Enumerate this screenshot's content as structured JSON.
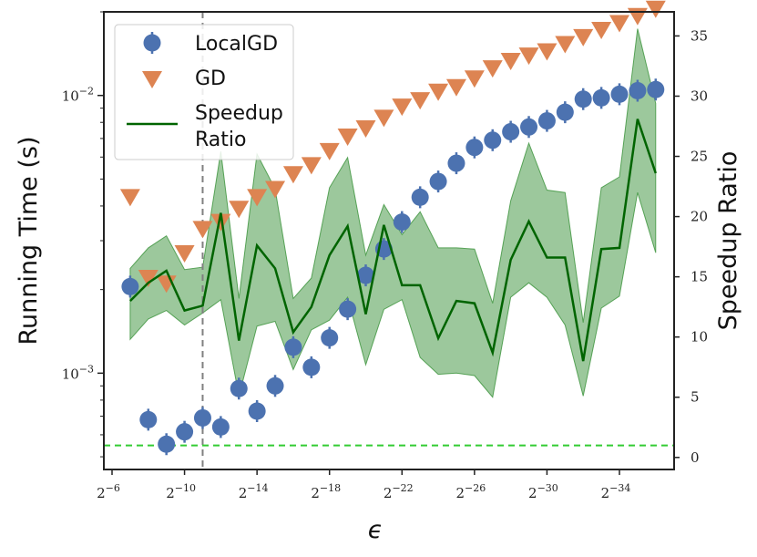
{
  "chart_data": {
    "type": "scatter",
    "title": "",
    "xlabel": "ϵ",
    "ylabel_left": "Running Time (s)",
    "ylabel_right": "Speedup Ratio",
    "x_scale": "log2",
    "y_left_scale": "log10",
    "x_exponents": [
      -7,
      -8,
      -9,
      -10,
      -11,
      -12,
      -13,
      -14,
      -15,
      -16,
      -17,
      -18,
      -19,
      -20,
      -21,
      -22,
      -23,
      -24,
      -25,
      -26,
      -27,
      -28,
      -29,
      -30,
      -31,
      -32,
      -33,
      -34,
      -35,
      -36
    ],
    "x_tick_exponents": [
      -6,
      -10,
      -14,
      -18,
      -22,
      -26,
      -30,
      -34
    ],
    "x_tick_labels": [
      "2",
      "2",
      "2",
      "2",
      "2",
      "2",
      "2",
      "2"
    ],
    "x_tick_sup": [
      "−6",
      "−10",
      "−14",
      "−18",
      "−22",
      "−26",
      "−30",
      "−34"
    ],
    "y_left_ticks": [
      {
        "value": 0.01,
        "base": "10",
        "exp": "−2"
      },
      {
        "value": 0.001,
        "base": "10",
        "exp": "−3"
      }
    ],
    "y_left_range": [
      0.00045,
      0.02
    ],
    "y_right_range": [
      -1,
      37
    ],
    "y_right_ticks": [
      0,
      5,
      10,
      15,
      20,
      25,
      30,
      35
    ],
    "y_right_tick_labels": [
      "0",
      "5",
      "10",
      "15",
      "20",
      "25",
      "30",
      "35"
    ],
    "series": [
      {
        "name": "LocalGD",
        "marker": "circle",
        "color": "#4c72b0",
        "values": [
          0.00205,
          0.00068,
          0.000555,
          0.000615,
          0.00069,
          0.00064,
          0.00088,
          0.00073,
          0.0009,
          0.00124,
          0.00105,
          0.00134,
          0.0017,
          0.00225,
          0.0028,
          0.0035,
          0.0043,
          0.0049,
          0.0057,
          0.0065,
          0.0069,
          0.0074,
          0.0077,
          0.0081,
          0.0087,
          0.0097,
          0.0098,
          0.0101,
          0.0104,
          0.0105
        ]
      },
      {
        "name": "GD",
        "marker": "triangle-down",
        "color": "#dd8452",
        "values": [
          0.0043,
          0.0022,
          0.0021,
          0.0027,
          0.0033,
          0.0035,
          0.0039,
          0.0043,
          0.0046,
          0.0052,
          0.0056,
          0.0063,
          0.0071,
          0.0076,
          0.0083,
          0.0091,
          0.0096,
          0.0103,
          0.0107,
          0.0115,
          0.0125,
          0.0133,
          0.0139,
          0.0144,
          0.0153,
          0.0162,
          0.0172,
          0.0182,
          0.0193,
          0.0205
        ]
      },
      {
        "name": "Speedup Ratio",
        "axis": "right",
        "marker": "line",
        "color": "#006400",
        "band_color": "#3a923a",
        "values": [
          13,
          14.5,
          15.5,
          12.2,
          12.6,
          20.3,
          9.7,
          17.6,
          15.7,
          10.4,
          12.5,
          16.8,
          19.2,
          11.9,
          19.3,
          14.3,
          14.3,
          9.9,
          13,
          12.8,
          8.7,
          16.4,
          19.6,
          16.6,
          16.6,
          8,
          17.3,
          17.4,
          28.1,
          23.6
        ],
        "lower": [
          9.8,
          11.5,
          12.2,
          11,
          12,
          13.1,
          5.1,
          10.9,
          11.3,
          7.3,
          10.6,
          11.4,
          13.3,
          7.7,
          12.3,
          13.1,
          8.3,
          6.9,
          7,
          6.8,
          5,
          13.3,
          14.5,
          13.3,
          11,
          5.1,
          12.4,
          13.4,
          22,
          17
        ]
      }
    ],
    "speedup_upper": [
      15.7,
      17.4,
      18.4,
      15.6,
      15.8,
      25.4,
      13.2,
      25.2,
      22.3,
      13.2,
      14.9,
      22.4,
      24.9,
      16.8,
      21,
      18.5,
      20.4,
      17.4,
      17.4,
      17.3,
      12.8,
      21.3,
      26.1,
      22.2,
      22,
      11.2,
      22.4,
      23.3,
      35.6,
      29.4
    ],
    "reference_lines": [
      {
        "name": "epsilon-marker",
        "orientation": "vertical",
        "at_exponent": -11,
        "style": "dashed",
        "color": "#808080"
      },
      {
        "name": "ratio-one",
        "orientation": "horizontal",
        "axis": "right",
        "value": 1,
        "style": "dashed",
        "color": "#33cc33"
      }
    ],
    "legend": {
      "placement": "top-left",
      "entries": [
        {
          "label": "LocalGD",
          "marker": "circle",
          "color": "#4c72b0"
        },
        {
          "label": "GD",
          "marker": "triangle-down",
          "color": "#dd8452"
        },
        {
          "label_line1": "Speedup",
          "label_line2": "Ratio",
          "marker": "line",
          "color": "#006400"
        }
      ]
    }
  }
}
